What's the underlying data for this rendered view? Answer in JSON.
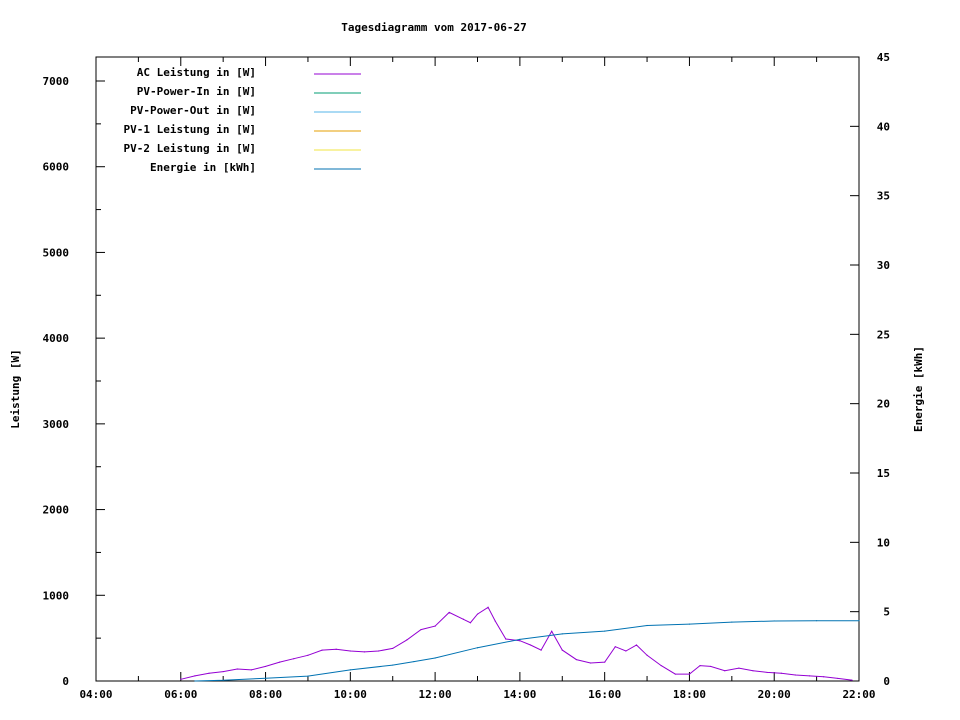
{
  "chart_data": {
    "type": "line",
    "title": "Tagesdiagramm vom 2017-06-27",
    "xlabel": "",
    "ylabel": "Leistung [W]",
    "y2label": "Energie [kWh]",
    "xlim": [
      "04:00",
      "22:00"
    ],
    "ylim": [
      0,
      7280
    ],
    "y2lim": [
      0,
      45
    ],
    "x_ticks": [
      "04:00",
      "06:00",
      "08:00",
      "10:00",
      "12:00",
      "14:00",
      "16:00",
      "18:00",
      "20:00",
      "22:00"
    ],
    "y_ticks": [
      0,
      1000,
      2000,
      3000,
      4000,
      5000,
      6000,
      7000
    ],
    "y2_ticks": [
      0,
      5,
      10,
      15,
      20,
      25,
      30,
      35,
      40,
      45
    ],
    "grid": false,
    "legend_placement": "top-left",
    "series": [
      {
        "name": "AC Leistung in [W]",
        "color": "#9400d3",
        "axis": "y",
        "x": [
          "06:00",
          "06:20",
          "06:40",
          "07:00",
          "07:20",
          "07:40",
          "08:00",
          "08:20",
          "08:40",
          "09:00",
          "09:20",
          "09:40",
          "10:00",
          "10:20",
          "10:40",
          "11:00",
          "11:20",
          "11:40",
          "12:00",
          "12:20",
          "12:40",
          "12:50",
          "13:00",
          "13:15",
          "13:25",
          "13:40",
          "14:00",
          "14:15",
          "14:30",
          "14:45",
          "15:00",
          "15:20",
          "15:40",
          "16:00",
          "16:15",
          "16:30",
          "16:45",
          "17:00",
          "17:20",
          "17:40",
          "18:00",
          "18:15",
          "18:30",
          "18:50",
          "19:10",
          "19:30",
          "19:50",
          "20:10",
          "20:30",
          "20:50",
          "21:10",
          "21:30",
          "21:50"
        ],
        "values": [
          20,
          60,
          90,
          110,
          140,
          130,
          170,
          220,
          260,
          300,
          360,
          370,
          350,
          340,
          350,
          380,
          480,
          600,
          640,
          800,
          720,
          680,
          780,
          860,
          700,
          490,
          470,
          420,
          360,
          580,
          360,
          250,
          210,
          220,
          400,
          350,
          420,
          300,
          180,
          80,
          80,
          180,
          170,
          120,
          150,
          120,
          100,
          90,
          70,
          60,
          50,
          30,
          10
        ]
      },
      {
        "name": "PV-Power-In in [W]",
        "color": "#009e73",
        "axis": "y",
        "x": [],
        "values": []
      },
      {
        "name": "PV-Power-Out in [W]",
        "color": "#56b4e9",
        "axis": "y",
        "x": [],
        "values": []
      },
      {
        "name": "PV-1 Leistung in [W]",
        "color": "#e69f00",
        "axis": "y",
        "x": [],
        "values": []
      },
      {
        "name": "PV-2 Leistung in [W]",
        "color": "#f0e442",
        "axis": "y",
        "x": [],
        "values": []
      },
      {
        "name": "Energie in [kWh]",
        "color": "#0072b2",
        "axis": "y2",
        "x": [
          "06:20",
          "07:00",
          "08:00",
          "09:00",
          "10:00",
          "11:00",
          "11:30",
          "12:00",
          "13:00",
          "14:00",
          "15:00",
          "16:00",
          "17:00",
          "18:00",
          "19:00",
          "20:00",
          "21:00",
          "22:00"
        ],
        "values": [
          0,
          0.05,
          0.2,
          0.35,
          0.8,
          1.15,
          1.4,
          1.66,
          2.4,
          3.0,
          3.4,
          3.6,
          4.0,
          4.1,
          4.25,
          4.33,
          4.35,
          4.35
        ]
      }
    ]
  }
}
